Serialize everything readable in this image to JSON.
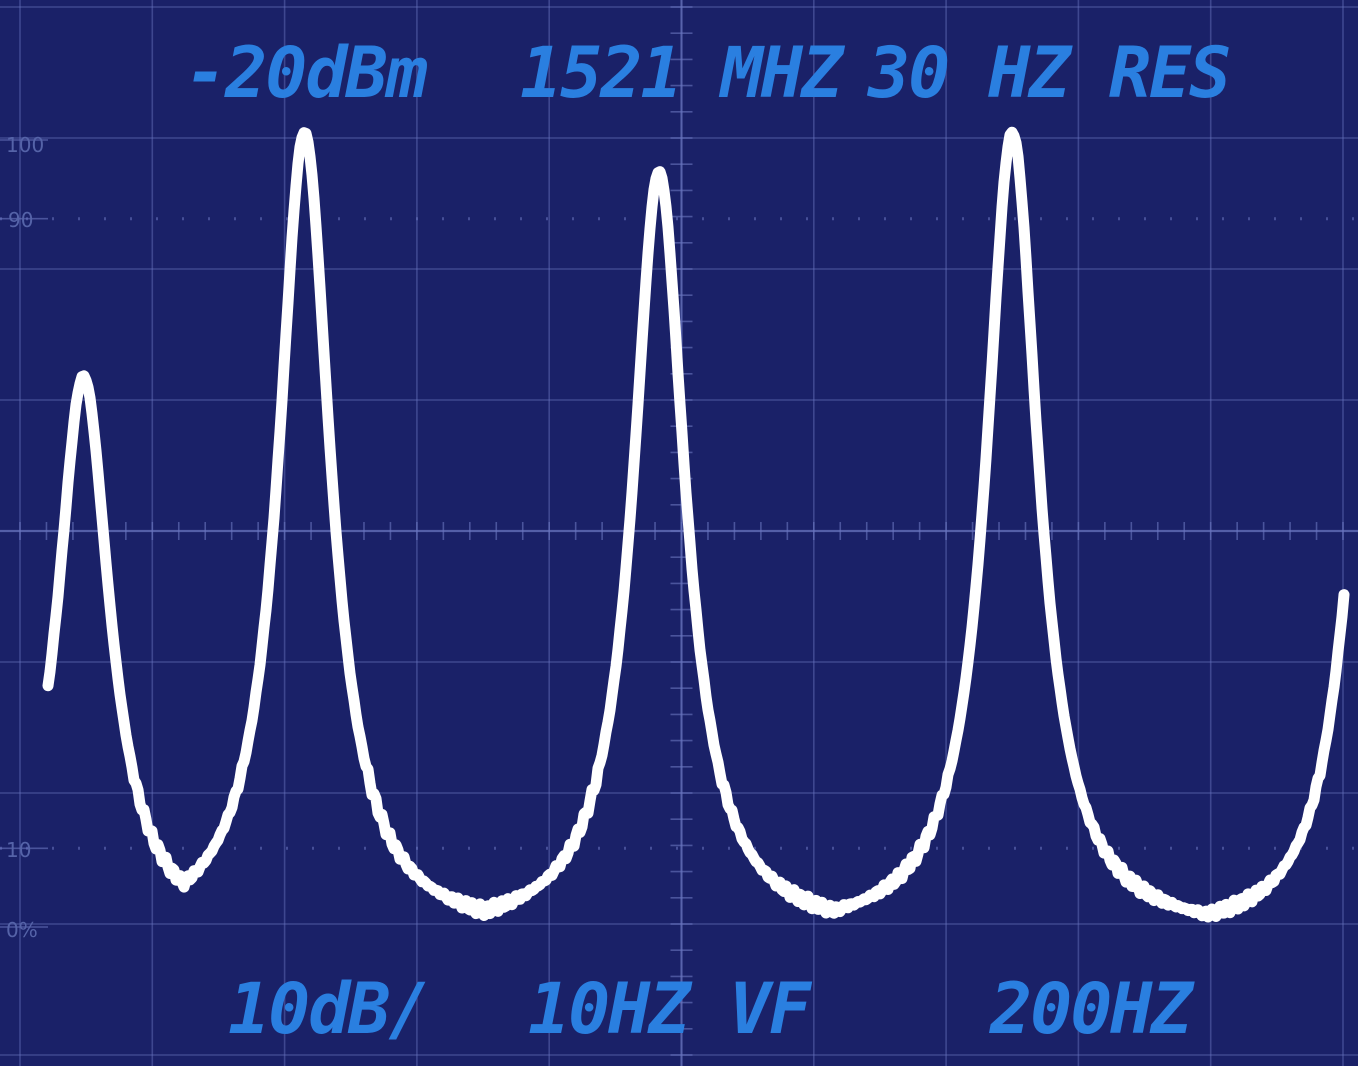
{
  "chart_data": {
    "type": "line",
    "subtype": "spectrum-analyzer-trace",
    "title": "",
    "xlabel": "",
    "ylabel": "",
    "ylim": [
      0,
      100
    ],
    "grid": true,
    "y_scale_labels": [
      "100",
      "90",
      "10",
      "0%"
    ],
    "y_scale_values": [
      100,
      90,
      10,
      0
    ],
    "readouts": {
      "reference_level": "-20dBm",
      "center_frequency": "1521 MHZ",
      "resolution_bandwidth": "30 HZ RES",
      "scale": "10dB/",
      "video_filter": "10HZ VF",
      "span_per_division": "200HZ"
    },
    "series": [
      {
        "peaks": [
          {
            "division": 0.48,
            "level": 70
          },
          {
            "division": 2.15,
            "level": 101
          },
          {
            "division": 4.83,
            "level": 96
          },
          {
            "division": 7.5,
            "level": 101
          },
          {
            "division": 10.2,
            "level": 70
          }
        ],
        "floor": -1,
        "trace_color": "#ffffff"
      }
    ],
    "colors": {
      "background": "#1a2168",
      "grid": "#6a76c0",
      "readout": "#2a7fe0",
      "trace": "#ffffff"
    }
  }
}
